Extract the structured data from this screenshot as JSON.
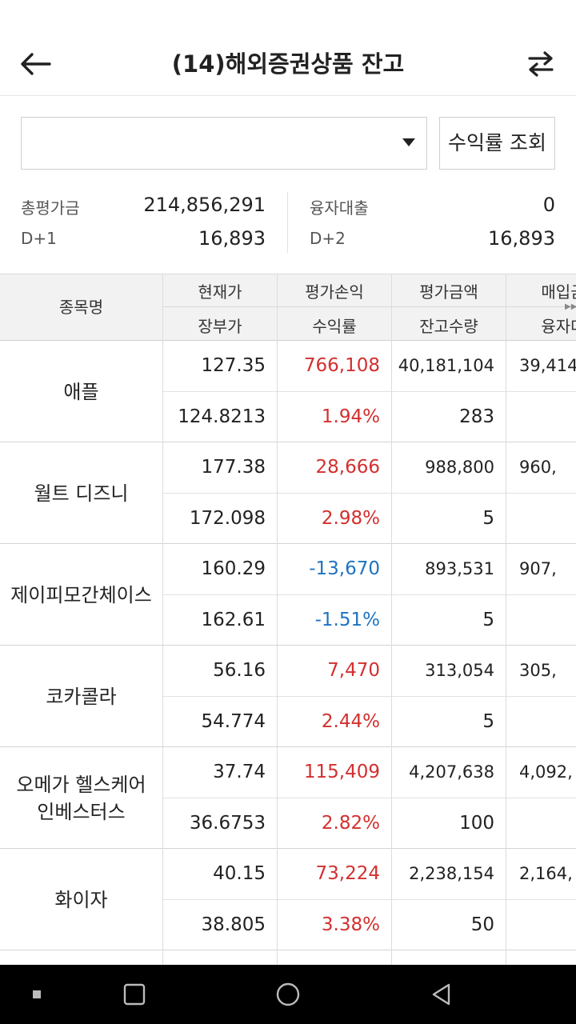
{
  "header": {
    "title": "(14)해외증권상품 잔고",
    "back_icon": "arrow-left-icon",
    "swap_icon": "swap-arrows-icon"
  },
  "account": {
    "value": ""
  },
  "yield_button": "수익률 조회",
  "summary": {
    "total_label": "총평가금",
    "total_value": "214,856,291",
    "loan_label": "융자대출",
    "loan_value": "0",
    "d1_label": "D+1",
    "d1_value": "16,893",
    "d2_label": "D+2",
    "d2_value": "16,893"
  },
  "table": {
    "name_header": "종목명",
    "top_headers": [
      "현재가",
      "평가손익",
      "평가금액",
      "매입금"
    ],
    "bottom_headers": [
      "장부가",
      "수익률",
      "잔고수량",
      "융자대"
    ],
    "rows": [
      {
        "name": "애플",
        "price": "127.35",
        "pnl": "766,108",
        "eval": "40,181,104",
        "buy": "39,414",
        "book": "124.8213",
        "rate": "1.94%",
        "qty": "283",
        "sign": "pos"
      },
      {
        "name": "월트 디즈니",
        "price": "177.38",
        "pnl": "28,666",
        "eval": "988,800",
        "buy": "960,",
        "book": "172.098",
        "rate": "2.98%",
        "qty": "5",
        "sign": "pos"
      },
      {
        "name": "제이피모간체이스",
        "price": "160.29",
        "pnl": "-13,670",
        "eval": "893,531",
        "buy": "907,",
        "book": "162.61",
        "rate": "-1.51%",
        "qty": "5",
        "sign": "neg"
      },
      {
        "name": "코카콜라",
        "price": "56.16",
        "pnl": "7,470",
        "eval": "313,054",
        "buy": "305,",
        "book": "54.774",
        "rate": "2.44%",
        "qty": "5",
        "sign": "pos"
      },
      {
        "name": "오메가 헬스케어 인베스터스",
        "price": "37.74",
        "pnl": "115,409",
        "eval": "4,207,638",
        "buy": "4,092,",
        "book": "36.6753",
        "rate": "2.82%",
        "qty": "100",
        "sign": "pos"
      },
      {
        "name": "화이자",
        "price": "40.15",
        "pnl": "73,224",
        "eval": "2,238,154",
        "buy": "2,164,",
        "book": "38.805",
        "rate": "3.38%",
        "qty": "50",
        "sign": "pos"
      }
    ]
  },
  "colors": {
    "positive": "#d32f2f",
    "negative": "#1e73c2",
    "header_bg": "#f2f2f2"
  },
  "navbar": {
    "icons": [
      "recent-dot-icon",
      "square-home-icon",
      "circle-home-icon",
      "triangle-back-icon"
    ]
  }
}
